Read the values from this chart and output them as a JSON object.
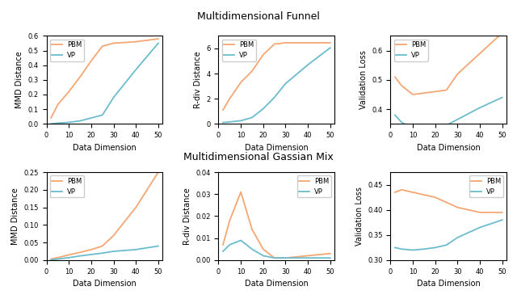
{
  "x": [
    2,
    5,
    10,
    15,
    20,
    25,
    30,
    40,
    50
  ],
  "title_top": "Multidimensional Funnel",
  "title_bottom": "Multidimensional Gassian Mix",
  "pbm_color": "#f4a673",
  "vp_color": "#6bbccc",
  "funnel_mmd_pbm": [
    0.04,
    0.13,
    0.22,
    0.32,
    0.43,
    0.53,
    0.55,
    0.56,
    0.58
  ],
  "funnel_mmd_vp": [
    0.0,
    0.005,
    0.01,
    0.02,
    0.04,
    0.06,
    0.18,
    0.37,
    0.55
  ],
  "funnel_rdiv_pbm": [
    1.1,
    2.0,
    3.3,
    4.2,
    5.5,
    6.35,
    6.45,
    6.45,
    6.45
  ],
  "funnel_rdiv_vp": [
    0.1,
    0.15,
    0.25,
    0.5,
    1.2,
    2.1,
    3.2,
    4.7,
    6.05
  ],
  "funnel_val_pbm": [
    0.51,
    0.48,
    0.45,
    0.455,
    0.46,
    0.465,
    0.52,
    0.59,
    0.66
  ],
  "funnel_val_vp": [
    0.38,
    0.355,
    0.335,
    0.335,
    0.34,
    0.345,
    0.365,
    0.405,
    0.44
  ],
  "gauss_mmd_pbm": [
    0.003,
    0.007,
    0.015,
    0.022,
    0.03,
    0.04,
    0.07,
    0.15,
    0.25
  ],
  "gauss_mmd_vp": [
    0.001,
    0.003,
    0.007,
    0.012,
    0.016,
    0.02,
    0.025,
    0.03,
    0.04
  ],
  "gauss_rdiv_pbm": [
    0.007,
    0.018,
    0.031,
    0.014,
    0.005,
    0.001,
    0.001,
    0.002,
    0.003
  ],
  "gauss_rdiv_vp": [
    0.004,
    0.007,
    0.009,
    0.005,
    0.002,
    0.001,
    0.001,
    0.001,
    0.001
  ],
  "gauss_val_pbm": [
    0.435,
    0.44,
    0.435,
    0.43,
    0.425,
    0.415,
    0.405,
    0.395,
    0.395
  ],
  "gauss_val_vp": [
    0.325,
    0.322,
    0.32,
    0.322,
    0.325,
    0.33,
    0.345,
    0.365,
    0.38
  ],
  "funnel_mmd_ylim": [
    0.0,
    0.6
  ],
  "funnel_rdiv_ylim": [
    0,
    7
  ],
  "funnel_val_ylim": [
    0.35,
    0.65
  ],
  "gauss_mmd_ylim": [
    0.0,
    0.25
  ],
  "gauss_rdiv_ylim": [
    0.0,
    0.04
  ],
  "gauss_val_ylim": [
    0.3,
    0.475
  ],
  "xlabel": "Data Dimension",
  "ylabel_mmd": "MMD Distance",
  "ylabel_rdiv": "R-div Distance",
  "ylabel_val": "Validation Loss"
}
